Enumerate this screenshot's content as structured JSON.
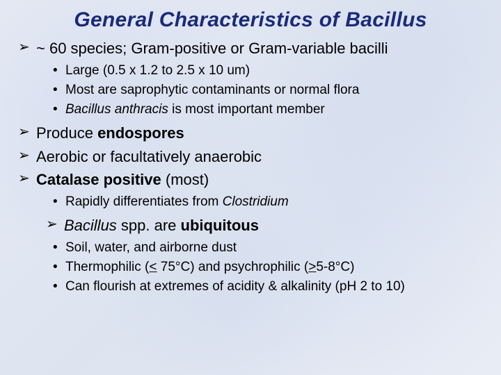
{
  "title": "General Characteristics of Bacillus",
  "b1": {
    "text_a": "~ 60 species; Gram-positive or Gram-variable bacilli",
    "sub1": "Large (0.5 x 1.2 to 2.5 x 10 um)",
    "sub2": "Most are saprophytic contaminants or normal flora",
    "sub3_em": "Bacillus anthracis",
    "sub3_rest": " is most important member"
  },
  "b2_a": "Produce ",
  "b2_strong": "endospores",
  "b3": "Aerobic or facultatively anaerobic",
  "b4_strong": "Catalase positive",
  "b4_rest": " (most)",
  "b4_sub1_a": "Rapidly differentiates from ",
  "b4_sub1_em": "Clostridium",
  "b5_em": "Bacillus",
  "b5_mid": " spp. are ",
  "b5_strong": "ubiquitous",
  "b5_sub1": "Soil, water, and airborne dust",
  "b5_sub2_a": "Thermophilic (",
  "b5_sub2_u1": "<",
  "b5_sub2_b": " 75°C) and psychrophilic (",
  "b5_sub2_u2": ">",
  "b5_sub2_c": "5-8°C)",
  "b5_sub3": "Can flourish at extremes of acidity & alkalinity (pH 2 to 10)"
}
